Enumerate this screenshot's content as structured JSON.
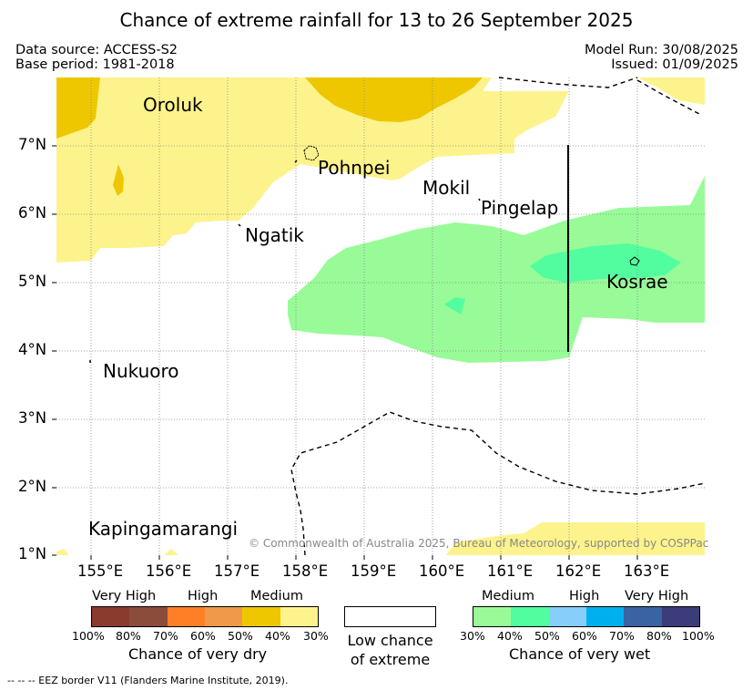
{
  "title": "Chance of extreme rainfall for 13 to 26 September 2025",
  "header": {
    "data_source": "Data source: ACCESS-S2",
    "base_period": "Base period: 1981-2018",
    "model_run": "Model Run: 30/08/2025",
    "issued": "Issued: 01/09/2025"
  },
  "map": {
    "lon_labels": [
      "155°E",
      "156°E",
      "157°E",
      "158°E",
      "159°E",
      "160°E",
      "161°E",
      "162°E",
      "163°E"
    ],
    "lat_labels": [
      "1°N",
      "2°N",
      "3°N",
      "4°N",
      "5°N",
      "6°N",
      "7°N"
    ],
    "places": {
      "oroluk": "Oroluk",
      "pohnpei": "Pohnpei",
      "mokil": "Mokil",
      "pingelap": "Pingelap",
      "ngatik": "Ngatik",
      "kosrae": "Kosrae",
      "nukuoro": "Nukuoro",
      "kapingamarangi": "Kapingamarangi"
    },
    "copyright": "© Commonwealth of Australia 2025, Bureau of Meteorology, supported by COSPPac",
    "colors": {
      "dry_30": "#fdf38c",
      "dry_40": "#eec700",
      "wet_30": "#98fb98",
      "wet_40": "#52fda0"
    }
  },
  "legend": {
    "dry": {
      "categories": [
        "Very High",
        "High",
        "Medium"
      ],
      "ticks": [
        "100%",
        "80%",
        "70%",
        "60%",
        "50%",
        "40%",
        "30%"
      ],
      "title": "Chance of very dry",
      "colors": [
        "#8b3a2e",
        "#8b4c3c",
        "#ff7f27",
        "#ee9a4a",
        "#eec700",
        "#fdf38c"
      ]
    },
    "neutral": {
      "line1": "Low chance",
      "line2": "of extreme"
    },
    "wet": {
      "categories": [
        "Medium",
        "High",
        "Very High"
      ],
      "ticks": [
        "30%",
        "40%",
        "50%",
        "60%",
        "70%",
        "80%",
        "100%"
      ],
      "title": "Chance of very wet",
      "colors": [
        "#98fb98",
        "#52fda0",
        "#87cefa",
        "#00b0ee",
        "#3a63a3",
        "#3c3c7a"
      ]
    }
  },
  "footnote": "--  --  -- EEZ border V11 (Flanders Marine Institute, 2019)."
}
